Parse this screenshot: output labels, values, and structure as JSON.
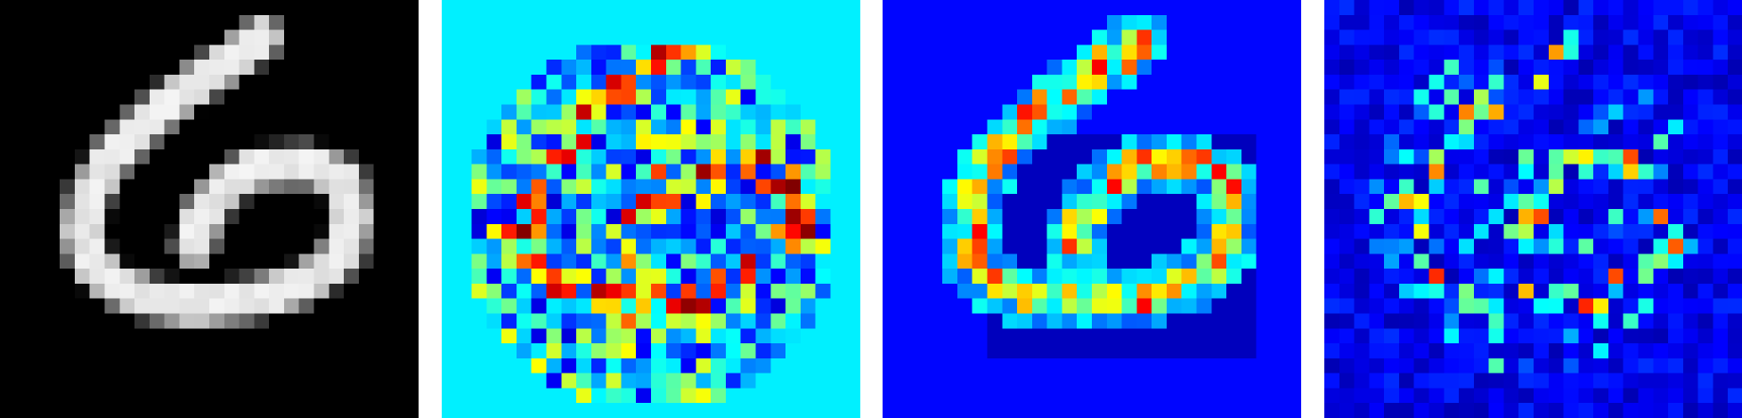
{
  "figure": {
    "panel_count": 4,
    "grid_size": 28,
    "background": "#ffffff",
    "panels": [
      {
        "kind": "input-digit",
        "colormap": "gray",
        "base_color": "#000000"
      },
      {
        "kind": "saliency-map",
        "colormap": "jet",
        "base_color": "#00c8ff"
      },
      {
        "kind": "saliency-map",
        "colormap": "jet",
        "base_color": "#0014ff"
      },
      {
        "kind": "saliency-map",
        "colormap": "jet",
        "base_color": "#0008c8"
      }
    ]
  }
}
